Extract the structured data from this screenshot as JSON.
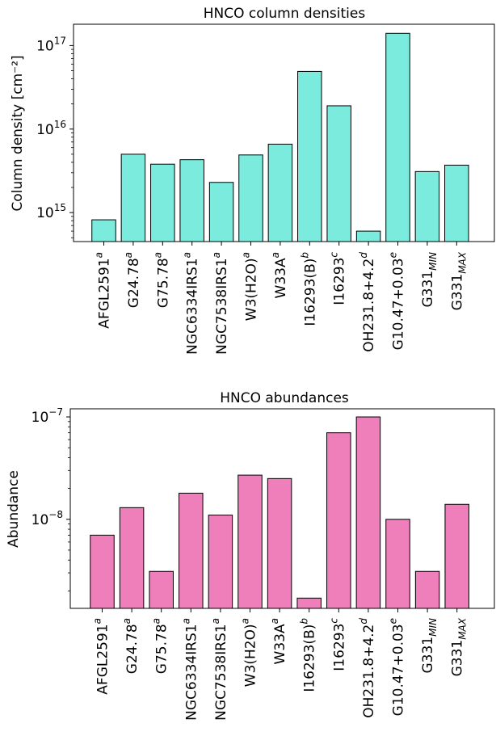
{
  "chart_data": [
    {
      "type": "bar",
      "title": "HNCO column densities",
      "ylabel": "Column density [cm⁻²]",
      "yscale": "log",
      "ylim": [
        450000000000000.0,
        1.8e+17
      ],
      "yticks": [
        {
          "value": 1000000000000000.0,
          "base": "10",
          "exp": "15"
        },
        {
          "value": 1e+16,
          "base": "10",
          "exp": "16"
        },
        {
          "value": 1e+17,
          "base": "10",
          "exp": "17"
        }
      ],
      "bar_color": "#7aebdc",
      "categories": [
        {
          "main": "AFGL2591",
          "sup": "a",
          "sub": ""
        },
        {
          "main": "G24.78",
          "sup": "a",
          "sub": ""
        },
        {
          "main": "G75.78",
          "sup": "a",
          "sub": ""
        },
        {
          "main": "NGC6334IRS1",
          "sup": "a",
          "sub": ""
        },
        {
          "main": "NGC7538IRS1",
          "sup": "a",
          "sub": ""
        },
        {
          "main": "W3(H2O)",
          "sup": "a",
          "sub": ""
        },
        {
          "main": "W33A",
          "sup": "a",
          "sub": ""
        },
        {
          "main": "I16293(B)",
          "sup": "b",
          "sub": ""
        },
        {
          "main": "I16293",
          "sup": "c",
          "sub": ""
        },
        {
          "main": "OH231.8+4.2",
          "sup": "d",
          "sub": ""
        },
        {
          "main": "G10.47+0.03",
          "sup": "e",
          "sub": ""
        },
        {
          "main": "G331",
          "sup": "",
          "sub": "MIN"
        },
        {
          "main": "G331",
          "sup": "",
          "sub": "MAX"
        }
      ],
      "values": [
        820000000000000.0,
        5000000000000000.0,
        3800000000000000.0,
        4300000000000000.0,
        2300000000000000.0,
        4900000000000000.0,
        6600000000000000.0,
        4.9e+16,
        1.9e+16,
        600000000000000.0,
        1.4e+17,
        3100000000000000.0,
        3700000000000000.0
      ]
    },
    {
      "type": "bar",
      "title": "HNCO abundances",
      "ylabel": "Abundance",
      "yscale": "log",
      "ylim": [
        1.35e-09,
        1.2e-07
      ],
      "yticks": [
        {
          "value": 1e-08,
          "base": "10",
          "exp": "−8"
        },
        {
          "value": 1e-07,
          "base": "10",
          "exp": "−7"
        }
      ],
      "bar_color": "#ee7fba",
      "categories": [
        {
          "main": "AFGL2591",
          "sup": "a",
          "sub": ""
        },
        {
          "main": "G24.78",
          "sup": "a",
          "sub": ""
        },
        {
          "main": "G75.78",
          "sup": "a",
          "sub": ""
        },
        {
          "main": "NGC6334IRS1",
          "sup": "a",
          "sub": ""
        },
        {
          "main": "NGC7538IRS1",
          "sup": "a",
          "sub": ""
        },
        {
          "main": "W3(H2O)",
          "sup": "a",
          "sub": ""
        },
        {
          "main": "W33A",
          "sup": "a",
          "sub": ""
        },
        {
          "main": "I16293(B)",
          "sup": "b",
          "sub": ""
        },
        {
          "main": "I16293",
          "sup": "c",
          "sub": ""
        },
        {
          "main": "OH231.8+4.2",
          "sup": "d",
          "sub": ""
        },
        {
          "main": "G10.47+0.03",
          "sup": "e",
          "sub": ""
        },
        {
          "main": "G331",
          "sup": "",
          "sub": "MIN"
        },
        {
          "main": "G331",
          "sup": "",
          "sub": "MAX"
        }
      ],
      "values": [
        7e-09,
        1.3e-08,
        3.1e-09,
        1.8e-08,
        1.1e-08,
        2.7e-08,
        2.5e-08,
        1.7e-09,
        7e-08,
        1e-07,
        1e-08,
        3.1e-09,
        1.4e-08
      ]
    }
  ]
}
